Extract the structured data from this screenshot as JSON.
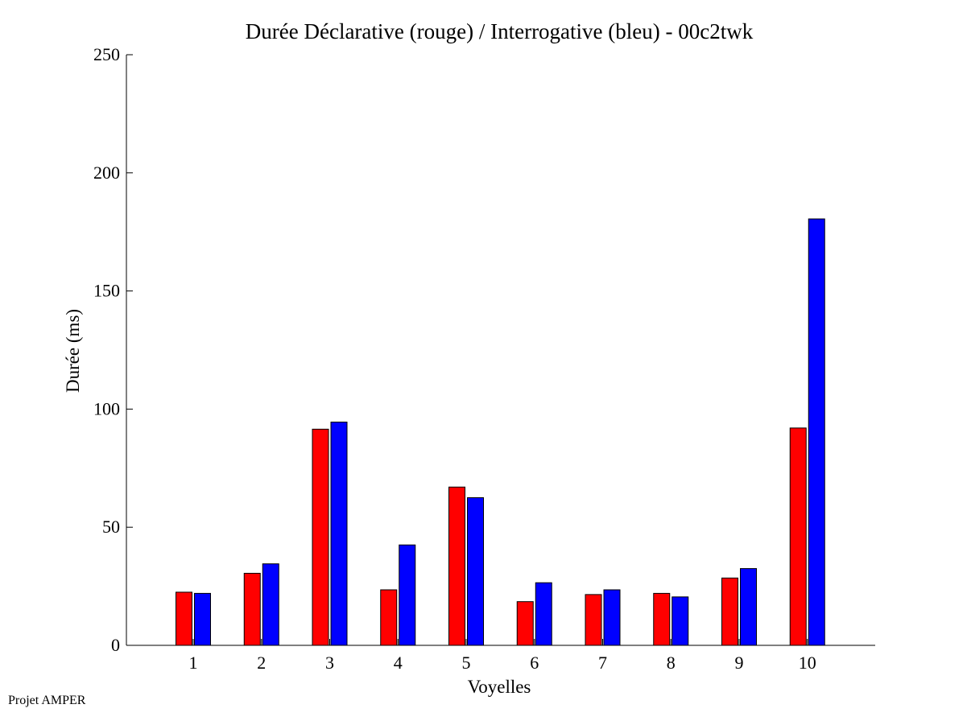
{
  "footer": {
    "text": "Projet AMPER"
  },
  "colors": {
    "declarative": "#ff0000",
    "interrogative": "#0000ff",
    "axis": "#000000"
  },
  "chart_data": {
    "type": "bar",
    "title": "Durée Déclarative (rouge) / Interrogative (bleu) - 00c2twk",
    "xlabel": "Voyelles",
    "ylabel": "Durée (ms)",
    "categories": [
      "1",
      "2",
      "3",
      "4",
      "5",
      "6",
      "7",
      "8",
      "9",
      "10"
    ],
    "ylim": [
      0,
      250
    ],
    "yticks": [
      0,
      50,
      100,
      150,
      200,
      250
    ],
    "grid": false,
    "legend": "none",
    "series": [
      {
        "values": [
          22.5,
          30.5,
          91.5,
          23.5,
          67,
          18.5,
          21.5,
          22,
          28.5,
          92
        ]
      },
      {
        "values": [
          22,
          34.5,
          94.5,
          42.5,
          62.5,
          26.5,
          23.5,
          20.5,
          32.5,
          180.5
        ]
      }
    ]
  }
}
